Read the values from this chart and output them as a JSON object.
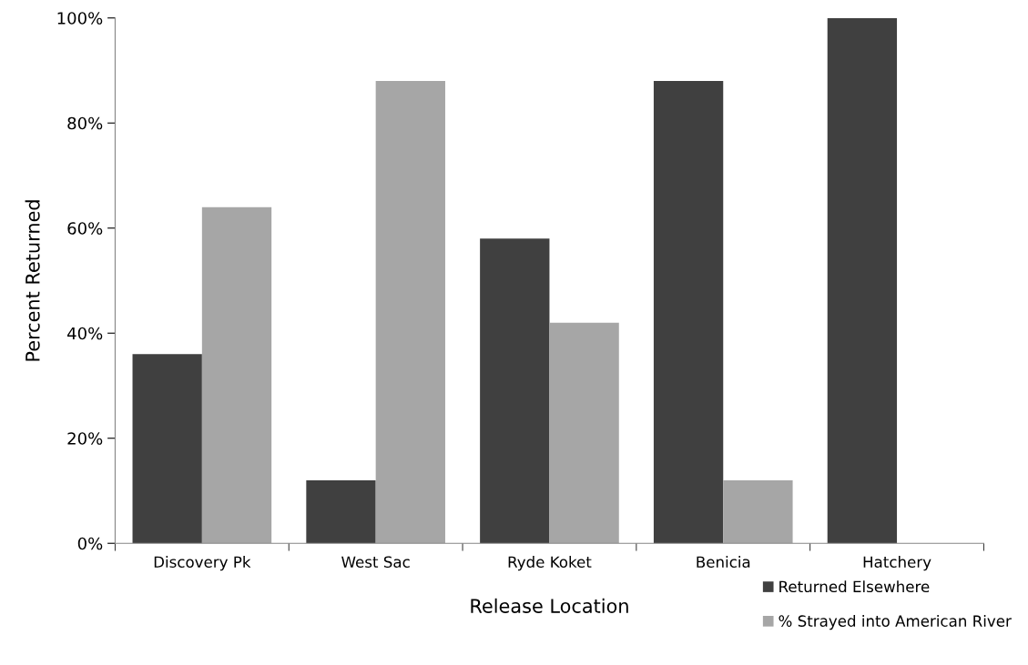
{
  "chart_data": {
    "type": "bar",
    "xlabel": "Release Location",
    "ylabel": "Percent Returned",
    "categories": [
      "Discovery Pk",
      "West Sac",
      "Ryde Koket",
      "Benicia",
      "Hatchery"
    ],
    "series": [
      {
        "name": "Returned Elsewhere",
        "color": "#404040",
        "values": [
          36,
          12,
          58,
          88,
          100
        ]
      },
      {
        "name": "% Strayed into American River",
        "color": "#a6a6a6",
        "values": [
          64,
          88,
          42,
          12,
          0
        ]
      }
    ],
    "ylim": [
      0,
      100
    ],
    "yticks": [
      {
        "value": 0,
        "label": "0%"
      },
      {
        "value": 20,
        "label": "20%"
      },
      {
        "value": 40,
        "label": "40%"
      },
      {
        "value": 60,
        "label": "60%"
      },
      {
        "value": 80,
        "label": "80%"
      },
      {
        "value": 100,
        "label": "100%"
      }
    ],
    "grid": false,
    "legend": "bottom right"
  }
}
